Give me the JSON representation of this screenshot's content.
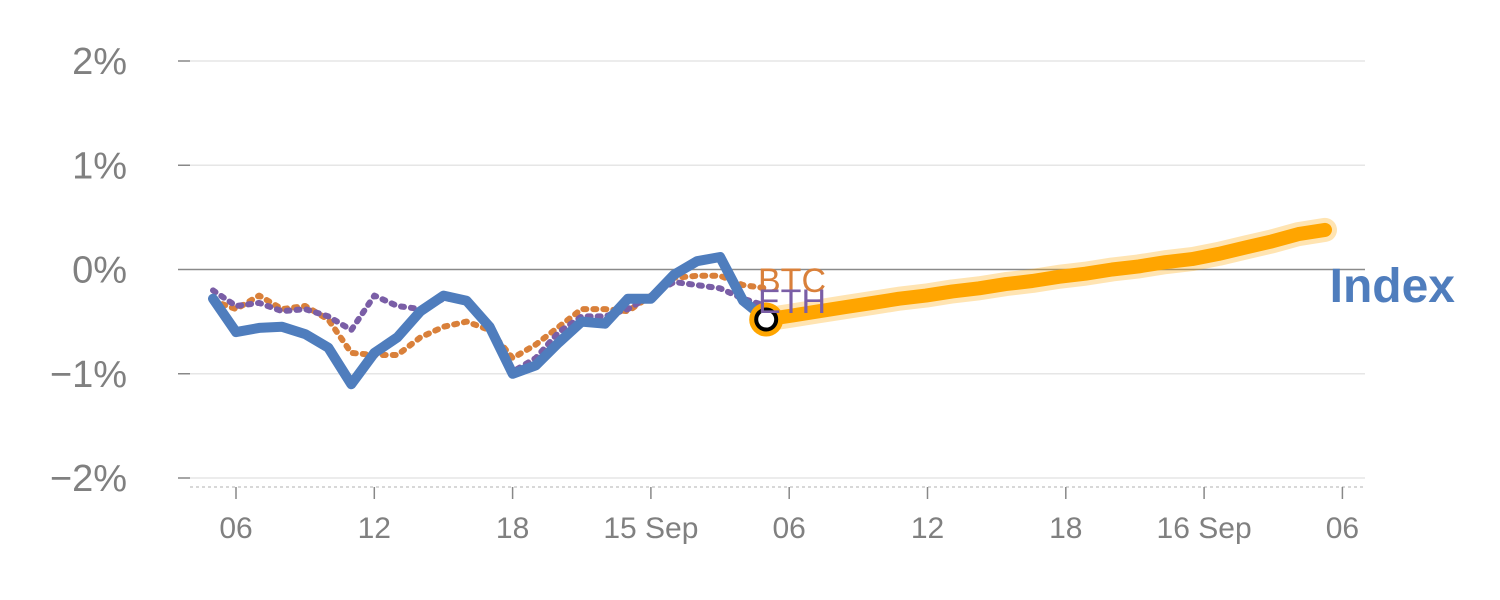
{
  "chart_data": {
    "type": "line",
    "ylim": [
      -2,
      2
    ],
    "y_ticks": [
      {
        "value": 2,
        "label": "2%"
      },
      {
        "value": 1,
        "label": "1%"
      },
      {
        "value": 0,
        "label": "0%"
      },
      {
        "value": -1,
        "label": "−1%"
      },
      {
        "value": -2,
        "label": "−2%"
      }
    ],
    "x_ticks": [
      "06",
      "12",
      "18",
      "15 Sep",
      "06",
      "12",
      "18",
      "16 Sep",
      "06"
    ],
    "series": [
      {
        "name": "Index",
        "color": "#4f7dbd",
        "style": "solid",
        "values": [
          -0.28,
          -0.6,
          -0.56,
          -0.55,
          -0.62,
          -0.75,
          -1.1,
          -0.8,
          -0.65,
          -0.4,
          -0.25,
          -0.3,
          -0.55,
          -1.0,
          -0.92,
          -0.7,
          -0.5,
          -0.52,
          -0.28,
          -0.28,
          -0.05,
          0.08,
          0.12,
          -0.3,
          -0.48
        ]
      },
      {
        "name": "BTC",
        "color": "#d9803a",
        "style": "dotted",
        "values": [
          -0.3,
          -0.38,
          -0.25,
          -0.38,
          -0.35,
          -0.48,
          -0.8,
          -0.82,
          -0.82,
          -0.65,
          -0.55,
          -0.5,
          -0.58,
          -0.85,
          -0.72,
          -0.55,
          -0.38,
          -0.38,
          -0.4,
          -0.25,
          -0.08,
          -0.06,
          -0.06,
          -0.15,
          -0.18
        ]
      },
      {
        "name": "ETH",
        "color": "#7a5ea6",
        "style": "dotted",
        "values": [
          -0.2,
          -0.35,
          -0.32,
          -0.4,
          -0.38,
          -0.45,
          -0.58,
          -0.25,
          -0.35,
          -0.38,
          -0.28,
          -0.28,
          -0.55,
          -0.98,
          -0.85,
          -0.6,
          -0.45,
          -0.45,
          -0.38,
          -0.25,
          -0.12,
          -0.15,
          -0.18,
          -0.28,
          -0.35
        ]
      },
      {
        "name": "",
        "color": "#ffa500",
        "style": "projection",
        "values": [
          -0.48,
          -0.44,
          -0.4,
          -0.36,
          -0.32,
          -0.28,
          -0.25,
          -0.21,
          -0.18,
          -0.14,
          -0.11,
          -0.07,
          -0.04,
          0.0,
          0.03,
          0.07,
          0.1,
          0.15,
          0.21,
          0.27,
          0.34,
          0.38
        ]
      }
    ],
    "marker": {
      "x_index": 24,
      "value": -0.48,
      "color": "#ffa500"
    }
  }
}
